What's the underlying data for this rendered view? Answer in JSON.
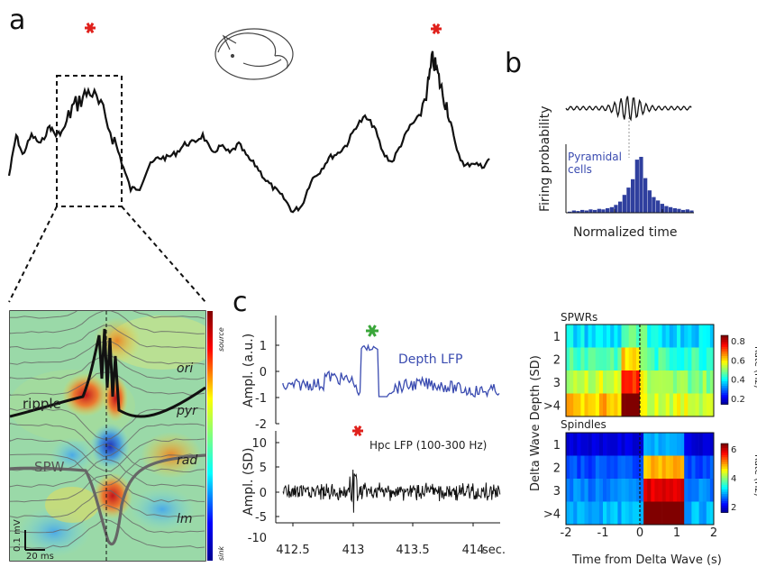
{
  "panel_a": {
    "letter": "a",
    "inset_labels": {
      "ripple": "ripple",
      "spw": "SPW",
      "ori": "ori",
      "pyr": "pyr",
      "rad": "rad",
      "lm": "lm",
      "scale_v": "0.1 mV",
      "scale_t": "20 ms",
      "colorbar_top": "source",
      "colorbar_bottom": "sink"
    },
    "colors": {
      "star": "#e0211c",
      "trace": "#111111"
    }
  },
  "panel_b": {
    "letter": "b",
    "ylabel": "Firing probability",
    "xlabel": "Normalized time",
    "legend": "Pyramidal\ncells",
    "legend_line1": "Pyramidal",
    "legend_line2": "cells",
    "color": "#2f3f9e",
    "histogram": [
      0.02,
      0.04,
      0.03,
      0.05,
      0.04,
      0.06,
      0.05,
      0.07,
      0.06,
      0.08,
      0.1,
      0.14,
      0.2,
      0.32,
      0.45,
      0.6,
      0.95,
      1.0,
      0.62,
      0.4,
      0.28,
      0.22,
      0.16,
      0.12,
      0.1,
      0.08,
      0.07,
      0.05,
      0.06,
      0.04
    ]
  },
  "panel_c": {
    "letter": "c",
    "top": {
      "ylabel": "Ampl. (a.u.)",
      "legend": "Depth LFP",
      "yticks": [
        "1",
        "0",
        "-1",
        "-2"
      ],
      "star_color": "#3aa63a"
    },
    "bottom": {
      "ylabel": "Ampl. (SD)",
      "legend": "Hpc LFP (100-300 Hz)",
      "yticks": [
        "10",
        "5",
        "0",
        "-5",
        "-10"
      ],
      "xticks": [
        "412.5",
        "413",
        "413.5",
        "414",
        "sec."
      ],
      "star_color": "#e0211c"
    }
  },
  "chart_data": [
    {
      "type": "heatmap",
      "title": "SPWRs",
      "xlabel": "Time from Delta Wave (s)",
      "ylabel": "Delta Wave Depth (SD)",
      "x_ticks": [
        "-2",
        "-1",
        "0",
        "1",
        "2"
      ],
      "y_ticks": [
        "1",
        "2",
        "3",
        ">4"
      ],
      "colorbar_label": "Rate (Hz)",
      "colorbar_ticks": [
        "0.8",
        "0.6",
        "0.4",
        "0.2"
      ],
      "clim": [
        0.2,
        0.8
      ]
    },
    {
      "type": "heatmap",
      "title": "Spindles",
      "xlabel": "Time from Delta Wave (s)",
      "ylabel": "Delta Wave Depth (SD)",
      "x_ticks": [
        "-2",
        "-1",
        "0",
        "1",
        "2"
      ],
      "y_ticks": [
        "1",
        "2",
        "3",
        ">4"
      ],
      "colorbar_label": "Rate (Hz)",
      "colorbar_ticks": [
        "6",
        "4",
        "2"
      ],
      "clim": [
        1,
        6
      ]
    }
  ],
  "heatmap_axis": {
    "ylabel": "Delta Wave Depth (SD)",
    "xlabel": "Time from Delta Wave (s)"
  }
}
